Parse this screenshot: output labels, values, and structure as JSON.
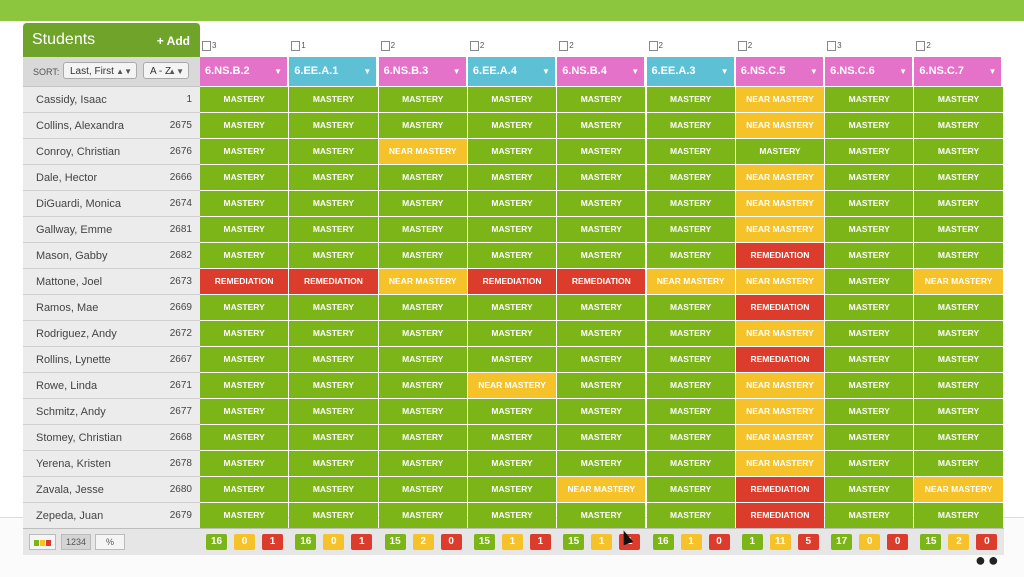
{
  "header": {
    "title": "Students",
    "add_label": "+ Add"
  },
  "sort": {
    "label": "SORT:",
    "field": "Last, First",
    "order": "A - Z"
  },
  "colors": {
    "mastery": "#7cb518",
    "near": "#f5c229",
    "remediation": "#dc3c2c",
    "pink": "#e472c8",
    "blue": "#5ec0d4"
  },
  "standards": [
    {
      "code": "6.NS.B.2",
      "count": "3",
      "color": "pink"
    },
    {
      "code": "6.EE.A.1",
      "count": "1",
      "color": "blue"
    },
    {
      "code": "6.NS.B.3",
      "count": "2",
      "color": "pink"
    },
    {
      "code": "6.EE.A.4",
      "count": "2",
      "color": "blue"
    },
    {
      "code": "6.NS.B.4",
      "count": "2",
      "color": "pink"
    },
    {
      "code": "6.EE.A.3",
      "count": "2",
      "color": "blue"
    },
    {
      "code": "6.NS.C.5",
      "count": "2",
      "color": "pink"
    },
    {
      "code": "6.NS.C.6",
      "count": "3",
      "color": "pink"
    },
    {
      "code": "6.NS.C.7",
      "count": "2",
      "color": "pink"
    }
  ],
  "status_labels": {
    "M": "MASTERY",
    "N": "NEAR MASTERY",
    "R": "REMEDIATION"
  },
  "students": [
    {
      "name": "Cassidy, Isaac",
      "id": "1",
      "scores": [
        "M",
        "M",
        "M",
        "M",
        "M",
        "M",
        "N",
        "M",
        "M"
      ]
    },
    {
      "name": "Collins, Alexandra",
      "id": "2675",
      "scores": [
        "M",
        "M",
        "M",
        "M",
        "M",
        "M",
        "N",
        "M",
        "M"
      ]
    },
    {
      "name": "Conroy, Christian",
      "id": "2676",
      "scores": [
        "M",
        "M",
        "N",
        "M",
        "M",
        "M",
        "M",
        "M",
        "M"
      ]
    },
    {
      "name": "Dale, Hector",
      "id": "2666",
      "scores": [
        "M",
        "M",
        "M",
        "M",
        "M",
        "M",
        "N",
        "M",
        "M"
      ]
    },
    {
      "name": "DiGuardi, Monica",
      "id": "2674",
      "scores": [
        "M",
        "M",
        "M",
        "M",
        "M",
        "M",
        "N",
        "M",
        "M"
      ]
    },
    {
      "name": "Gallway, Emme",
      "id": "2681",
      "scores": [
        "M",
        "M",
        "M",
        "M",
        "M",
        "M",
        "N",
        "M",
        "M"
      ]
    },
    {
      "name": "Mason, Gabby",
      "id": "2682",
      "scores": [
        "M",
        "M",
        "M",
        "M",
        "M",
        "M",
        "R",
        "M",
        "M"
      ]
    },
    {
      "name": "Mattone, Joel",
      "id": "2673",
      "scores": [
        "R",
        "R",
        "N",
        "R",
        "R",
        "N",
        "N",
        "M",
        "N"
      ]
    },
    {
      "name": "Ramos, Mae",
      "id": "2669",
      "scores": [
        "M",
        "M",
        "M",
        "M",
        "M",
        "M",
        "R",
        "M",
        "M"
      ]
    },
    {
      "name": "Rodriguez, Andy",
      "id": "2672",
      "scores": [
        "M",
        "M",
        "M",
        "M",
        "M",
        "M",
        "N",
        "M",
        "M"
      ]
    },
    {
      "name": "Rollins, Lynette",
      "id": "2667",
      "scores": [
        "M",
        "M",
        "M",
        "M",
        "M",
        "M",
        "R",
        "M",
        "M"
      ]
    },
    {
      "name": "Rowe, Linda",
      "id": "2671",
      "scores": [
        "M",
        "M",
        "M",
        "N",
        "M",
        "M",
        "N",
        "M",
        "M"
      ]
    },
    {
      "name": "Schmitz, Andy",
      "id": "2677",
      "scores": [
        "M",
        "M",
        "M",
        "M",
        "M",
        "M",
        "N",
        "M",
        "M"
      ]
    },
    {
      "name": "Stomey, Christian",
      "id": "2668",
      "scores": [
        "M",
        "M",
        "M",
        "M",
        "M",
        "M",
        "N",
        "M",
        "M"
      ]
    },
    {
      "name": "Yerena, Kristen",
      "id": "2678",
      "scores": [
        "M",
        "M",
        "M",
        "M",
        "M",
        "M",
        "N",
        "M",
        "M"
      ]
    },
    {
      "name": "Zavala, Jesse",
      "id": "2680",
      "scores": [
        "M",
        "M",
        "M",
        "M",
        "N",
        "M",
        "R",
        "M",
        "N"
      ]
    },
    {
      "name": "Zepeda, Juan",
      "id": "2679",
      "scores": [
        "M",
        "M",
        "M",
        "M",
        "M",
        "M",
        "R",
        "M",
        "M"
      ]
    }
  ],
  "footer": {
    "number_label": "1234",
    "percent_label": "%",
    "summary": [
      [
        "16",
        "0",
        "1"
      ],
      [
        "16",
        "0",
        "1"
      ],
      [
        "15",
        "2",
        "0"
      ],
      [
        "15",
        "1",
        "1"
      ],
      [
        "15",
        "1",
        "1"
      ],
      [
        "16",
        "1",
        "0"
      ],
      [
        "1",
        "11",
        "5"
      ],
      [
        "17",
        "0",
        "0"
      ],
      [
        "15",
        "2",
        "0"
      ]
    ]
  }
}
